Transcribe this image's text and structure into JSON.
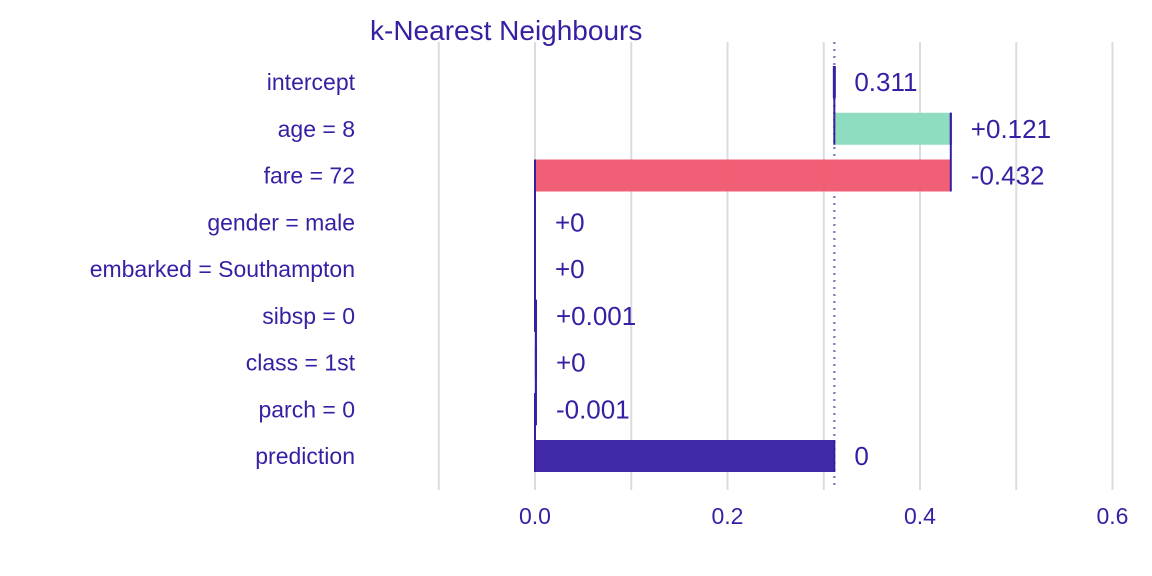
{
  "chart_data": {
    "type": "bar",
    "title": "k-Nearest Neighbours",
    "xlabel": "",
    "ylabel": "",
    "xlim": [
      -0.1,
      0.6
    ],
    "ticks": [
      0.0,
      0.2,
      0.4,
      0.6
    ],
    "tick_labels": [
      "0.0",
      "0.2",
      "0.4",
      "0.6"
    ],
    "grid": true,
    "reference_line": 0.311,
    "categories": [
      "intercept",
      "age = 8",
      "fare = 72",
      "gender = male",
      "embarked = Southampton",
      "sibsp = 0",
      "class = 1st",
      "parch = 0",
      "prediction"
    ],
    "bars": [
      {
        "label": "0.311",
        "start": 0.311,
        "end": 0.311,
        "kind": "intercept"
      },
      {
        "label": "+0.121",
        "start": 0.311,
        "end": 0.432,
        "kind": "positive"
      },
      {
        "label": "-0.432",
        "start": 0.432,
        "end": 0.0,
        "kind": "negative"
      },
      {
        "label": "+0",
        "start": 0.0,
        "end": 0.0,
        "kind": "positive"
      },
      {
        "label": "+0",
        "start": 0.0,
        "end": 0.0,
        "kind": "positive"
      },
      {
        "label": "+0.001",
        "start": 0.0,
        "end": 0.001,
        "kind": "positive"
      },
      {
        "label": "+0",
        "start": 0.001,
        "end": 0.001,
        "kind": "positive"
      },
      {
        "label": "-0.001",
        "start": 0.001,
        "end": 0.0,
        "kind": "negative"
      },
      {
        "label": "0",
        "start": 0.0,
        "end": 0.311,
        "kind": "prediction"
      }
    ],
    "colors": {
      "text": "#371ea3",
      "positive": "#8bdcbe",
      "negative": "#f05a71",
      "prediction": "#371ea3",
      "grid": "#dcdce0",
      "connector": "#371ea3"
    }
  }
}
